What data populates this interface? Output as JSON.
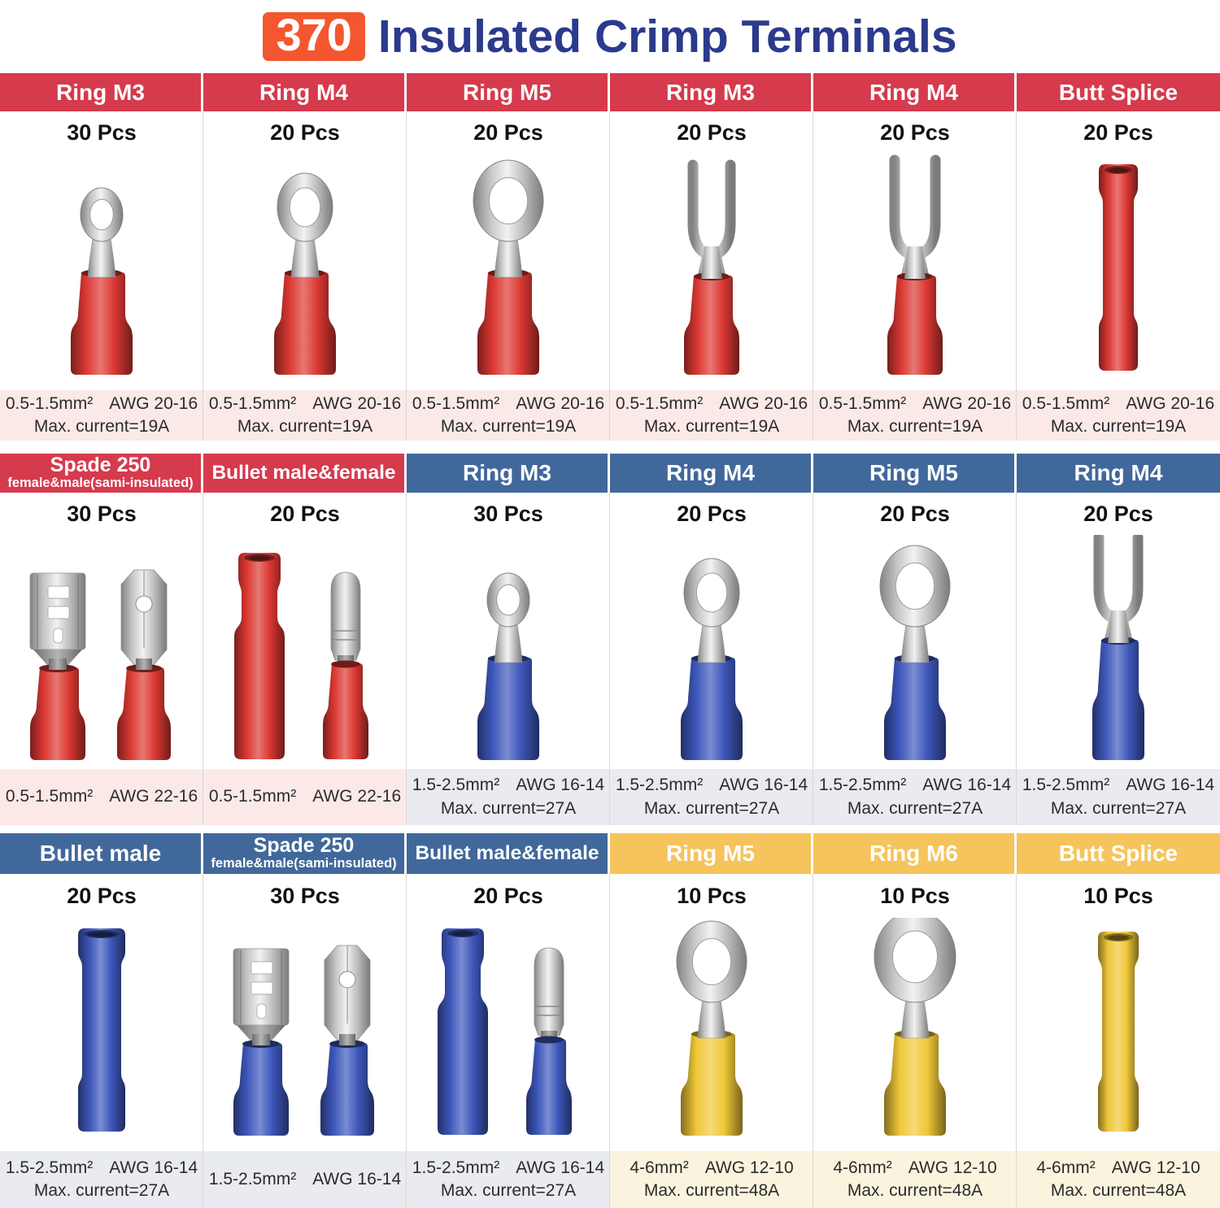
{
  "title": {
    "badge": "370",
    "text": "Insulated Crimp Terminals"
  },
  "theme": {
    "badge_bg": "#f4572f",
    "title_color": "#2b3a8c",
    "header_red": "#d63a4d",
    "header_blue": "#41689b",
    "header_orange": "#f6c45c",
    "footer_pink": "#fbe9e8",
    "footer_gray": "#e9ebf1",
    "footer_cream": "#faf4df",
    "terminal_red": "#dc3832",
    "terminal_blue": "#3d57bb",
    "terminal_yellow": "#efc738",
    "metal": "#c7c7c7"
  },
  "rows": [
    {
      "header_theme": "red",
      "footer_theme": "pink",
      "heights": {
        "hd": 47,
        "pcs": 53,
        "art": 290,
        "ft": 62,
        "pad": 18
      },
      "cells": [
        {
          "header": {
            "main": "Ring M3"
          },
          "pcs": "30 Pcs",
          "art": {
            "type": "ring",
            "size": "m3",
            "color": "red"
          },
          "footer": [
            [
              "0.5-1.5mm²",
              "AWG 20-16"
            ],
            [
              "Max. current=19A"
            ]
          ]
        },
        {
          "header": {
            "main": "Ring M4"
          },
          "pcs": "20 Pcs",
          "art": {
            "type": "ring",
            "size": "m4",
            "color": "red"
          },
          "footer": [
            [
              "0.5-1.5mm²",
              "AWG 20-16"
            ],
            [
              "Max. current=19A"
            ]
          ]
        },
        {
          "header": {
            "main": "Ring M5"
          },
          "pcs": "20 Pcs",
          "art": {
            "type": "ring",
            "size": "m5",
            "color": "red"
          },
          "footer": [
            [
              "0.5-1.5mm²",
              "AWG 20-16"
            ],
            [
              "Max. current=19A"
            ]
          ]
        },
        {
          "header": {
            "main": "Ring M3"
          },
          "pcs": "20 Pcs",
          "art": {
            "type": "fork",
            "size": "s",
            "color": "red"
          },
          "footer": [
            [
              "0.5-1.5mm²",
              "AWG 20-16"
            ],
            [
              "Max. current=19A"
            ]
          ]
        },
        {
          "header": {
            "main": "Ring M4"
          },
          "pcs": "20 Pcs",
          "art": {
            "type": "fork",
            "size": "m",
            "color": "red"
          },
          "footer": [
            [
              "0.5-1.5mm²",
              "AWG 20-16"
            ],
            [
              "Max. current=19A"
            ]
          ]
        },
        {
          "header": {
            "main": "Butt Splice"
          },
          "pcs": "20 Pcs",
          "art": {
            "type": "tube",
            "size": "m",
            "color": "red"
          },
          "footer": [
            [
              "0.5-1.5mm²",
              "AWG 20-16"
            ],
            [
              "Max. current=19A"
            ]
          ]
        }
      ]
    },
    {
      "header_theme": "red",
      "footer_theme": "pink",
      "heights": {
        "hd": 48,
        "pcs": 52,
        "art": 288,
        "ft": 69,
        "pad": 10
      },
      "cells": [
        {
          "header": {
            "main": "Spade 250",
            "sub": "female&male(sami-insulated)"
          },
          "pcs": "30 Pcs",
          "art": {
            "type": "spade-pair",
            "color": "red"
          },
          "footer": [
            [
              "0.5-1.5mm²",
              "AWG 22-16"
            ]
          ]
        },
        {
          "header": {
            "main": "Bullet male&female"
          },
          "pcs": "20 Pcs",
          "art": {
            "type": "bullet-pair",
            "color": "red"
          },
          "footer": [
            [
              "0.5-1.5mm²",
              "AWG 22-16"
            ]
          ]
        },
        {
          "header": {
            "main": "Ring M3"
          },
          "header_theme": "blue",
          "footer_theme": "gray",
          "pcs": "30 Pcs",
          "art": {
            "type": "ring",
            "size": "m3",
            "color": "blue"
          },
          "footer": [
            [
              "1.5-2.5mm²",
              "AWG 16-14"
            ],
            [
              "Max. current=27A"
            ]
          ]
        },
        {
          "header": {
            "main": "Ring M4"
          },
          "header_theme": "blue",
          "footer_theme": "gray",
          "pcs": "20 Pcs",
          "art": {
            "type": "ring",
            "size": "m4",
            "color": "blue"
          },
          "footer": [
            [
              "1.5-2.5mm²",
              "AWG 16-14"
            ],
            [
              "Max. current=27A"
            ]
          ]
        },
        {
          "header": {
            "main": "Ring M5"
          },
          "header_theme": "blue",
          "footer_theme": "gray",
          "pcs": "20 Pcs",
          "art": {
            "type": "ring",
            "size": "m5",
            "color": "blue"
          },
          "footer": [
            [
              "1.5-2.5mm²",
              "AWG 16-14"
            ],
            [
              "Max. current=27A"
            ]
          ]
        },
        {
          "header": {
            "main": "Ring M4"
          },
          "header_theme": "blue",
          "footer_theme": "gray",
          "pcs": "20 Pcs",
          "art": {
            "type": "fork",
            "size": "l",
            "color": "blue"
          },
          "footer": [
            [
              "1.5-2.5mm²",
              "AWG 16-14"
            ],
            [
              "Max. current=27A"
            ]
          ]
        }
      ]
    },
    {
      "header_theme": "blue",
      "footer_theme": "gray",
      "heights": {
        "hd": 50,
        "pcs": 54,
        "art": 287,
        "ft": 70,
        "pad": 18
      },
      "cells": [
        {
          "header": {
            "main": "Bullet male"
          },
          "pcs": "20 Pcs",
          "art": {
            "type": "tube",
            "size": "l",
            "color": "blue"
          },
          "footer": [
            [
              "1.5-2.5mm²",
              "AWG 16-14"
            ],
            [
              "Max. current=27A"
            ]
          ]
        },
        {
          "header": {
            "main": "Spade 250",
            "sub": "female&male(sami-insulated)"
          },
          "pcs": "30 Pcs",
          "art": {
            "type": "spade-pair",
            "color": "blue"
          },
          "footer": [
            [
              "1.5-2.5mm²",
              "AWG 16-14"
            ]
          ]
        },
        {
          "header": {
            "main": "Bullet male&female"
          },
          "pcs": "20 Pcs",
          "art": {
            "type": "bullet-pair",
            "color": "blue"
          },
          "footer": [
            [
              "1.5-2.5mm²",
              "AWG 16-14"
            ],
            [
              "Max. current=27A"
            ]
          ]
        },
        {
          "header": {
            "main": "Ring M5"
          },
          "header_theme": "orange",
          "footer_theme": "cream",
          "pcs": "10 Pcs",
          "art": {
            "type": "ring",
            "size": "m5",
            "color": "yellow"
          },
          "footer": [
            [
              "4-6mm²",
              "AWG 12-10"
            ],
            [
              "Max. current=48A"
            ]
          ]
        },
        {
          "header": {
            "main": "Ring M6"
          },
          "header_theme": "orange",
          "footer_theme": "cream",
          "pcs": "10 Pcs",
          "art": {
            "type": "ring",
            "size": "m6",
            "color": "yellow"
          },
          "footer": [
            [
              "4-6mm²",
              "AWG 12-10"
            ],
            [
              "Max. current=48A"
            ]
          ]
        },
        {
          "header": {
            "main": "Butt Splice"
          },
          "header_theme": "orange",
          "footer_theme": "cream",
          "pcs": "10 Pcs",
          "art": {
            "type": "tube",
            "size": "y",
            "color": "yellow"
          },
          "footer": [
            [
              "4-6mm²",
              "AWG 12-10"
            ],
            [
              "Max. current=48A"
            ]
          ]
        }
      ]
    }
  ]
}
